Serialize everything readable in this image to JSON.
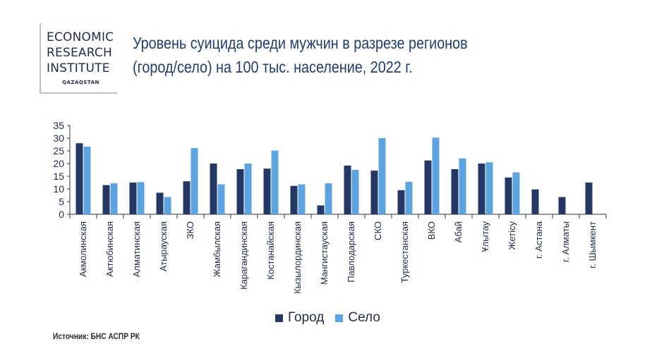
{
  "logo": {
    "line1": "ECONOMIC",
    "line2": "RESEARCH",
    "line3": "INSTITUTE",
    "sub": "QAZAQSTAN"
  },
  "title_line1": "Уровень суицида среди мужчин в разрезе регионов",
  "title_line2": "(город/село) на 100 тыс. население, 2022 г.",
  "source": "Источник: БНС АСПР РК",
  "colors": {
    "city": "#253865",
    "village": "#5ba4e0",
    "axis": "#333333"
  },
  "chart_data": {
    "type": "bar",
    "title": "Уровень суицида среди мужчин в разрезе регионов (город/село) на 100 тыс. население, 2022 г.",
    "xlabel": "",
    "ylabel": "",
    "ylim": [
      0,
      35
    ],
    "yticks": [
      0,
      5,
      10,
      15,
      20,
      25,
      30,
      35
    ],
    "grid": false,
    "legend_position": "bottom",
    "categories": [
      "Акмолинская",
      "Актюбинская",
      "Алматинская",
      "Атырауская",
      "ЗКО",
      "Жамбылская",
      "Карагандинская",
      "Костанайская",
      "Кызылординская",
      "Мангистауская",
      "Павлодарская",
      "СКО",
      "Туркестанская",
      "ВКО",
      "Абай",
      "Ұлытау",
      "Жетісу",
      "г. Астана",
      "г. Алматы",
      "г. Шымкент"
    ],
    "series": [
      {
        "name": "Город",
        "values": [
          28,
          11.5,
          12.5,
          8.5,
          13,
          20,
          17.8,
          18,
          11.2,
          3.5,
          19.2,
          17.2,
          9.5,
          21.2,
          17.8,
          20,
          14.5,
          9.8,
          6.8,
          12.5
        ]
      },
      {
        "name": "Село",
        "values": [
          26.7,
          12.2,
          12.7,
          6.8,
          26.1,
          11.8,
          20,
          25.1,
          11.8,
          12.2,
          17.5,
          30,
          12.8,
          30.2,
          22,
          20.5,
          16.5,
          null,
          null,
          null
        ]
      }
    ]
  }
}
